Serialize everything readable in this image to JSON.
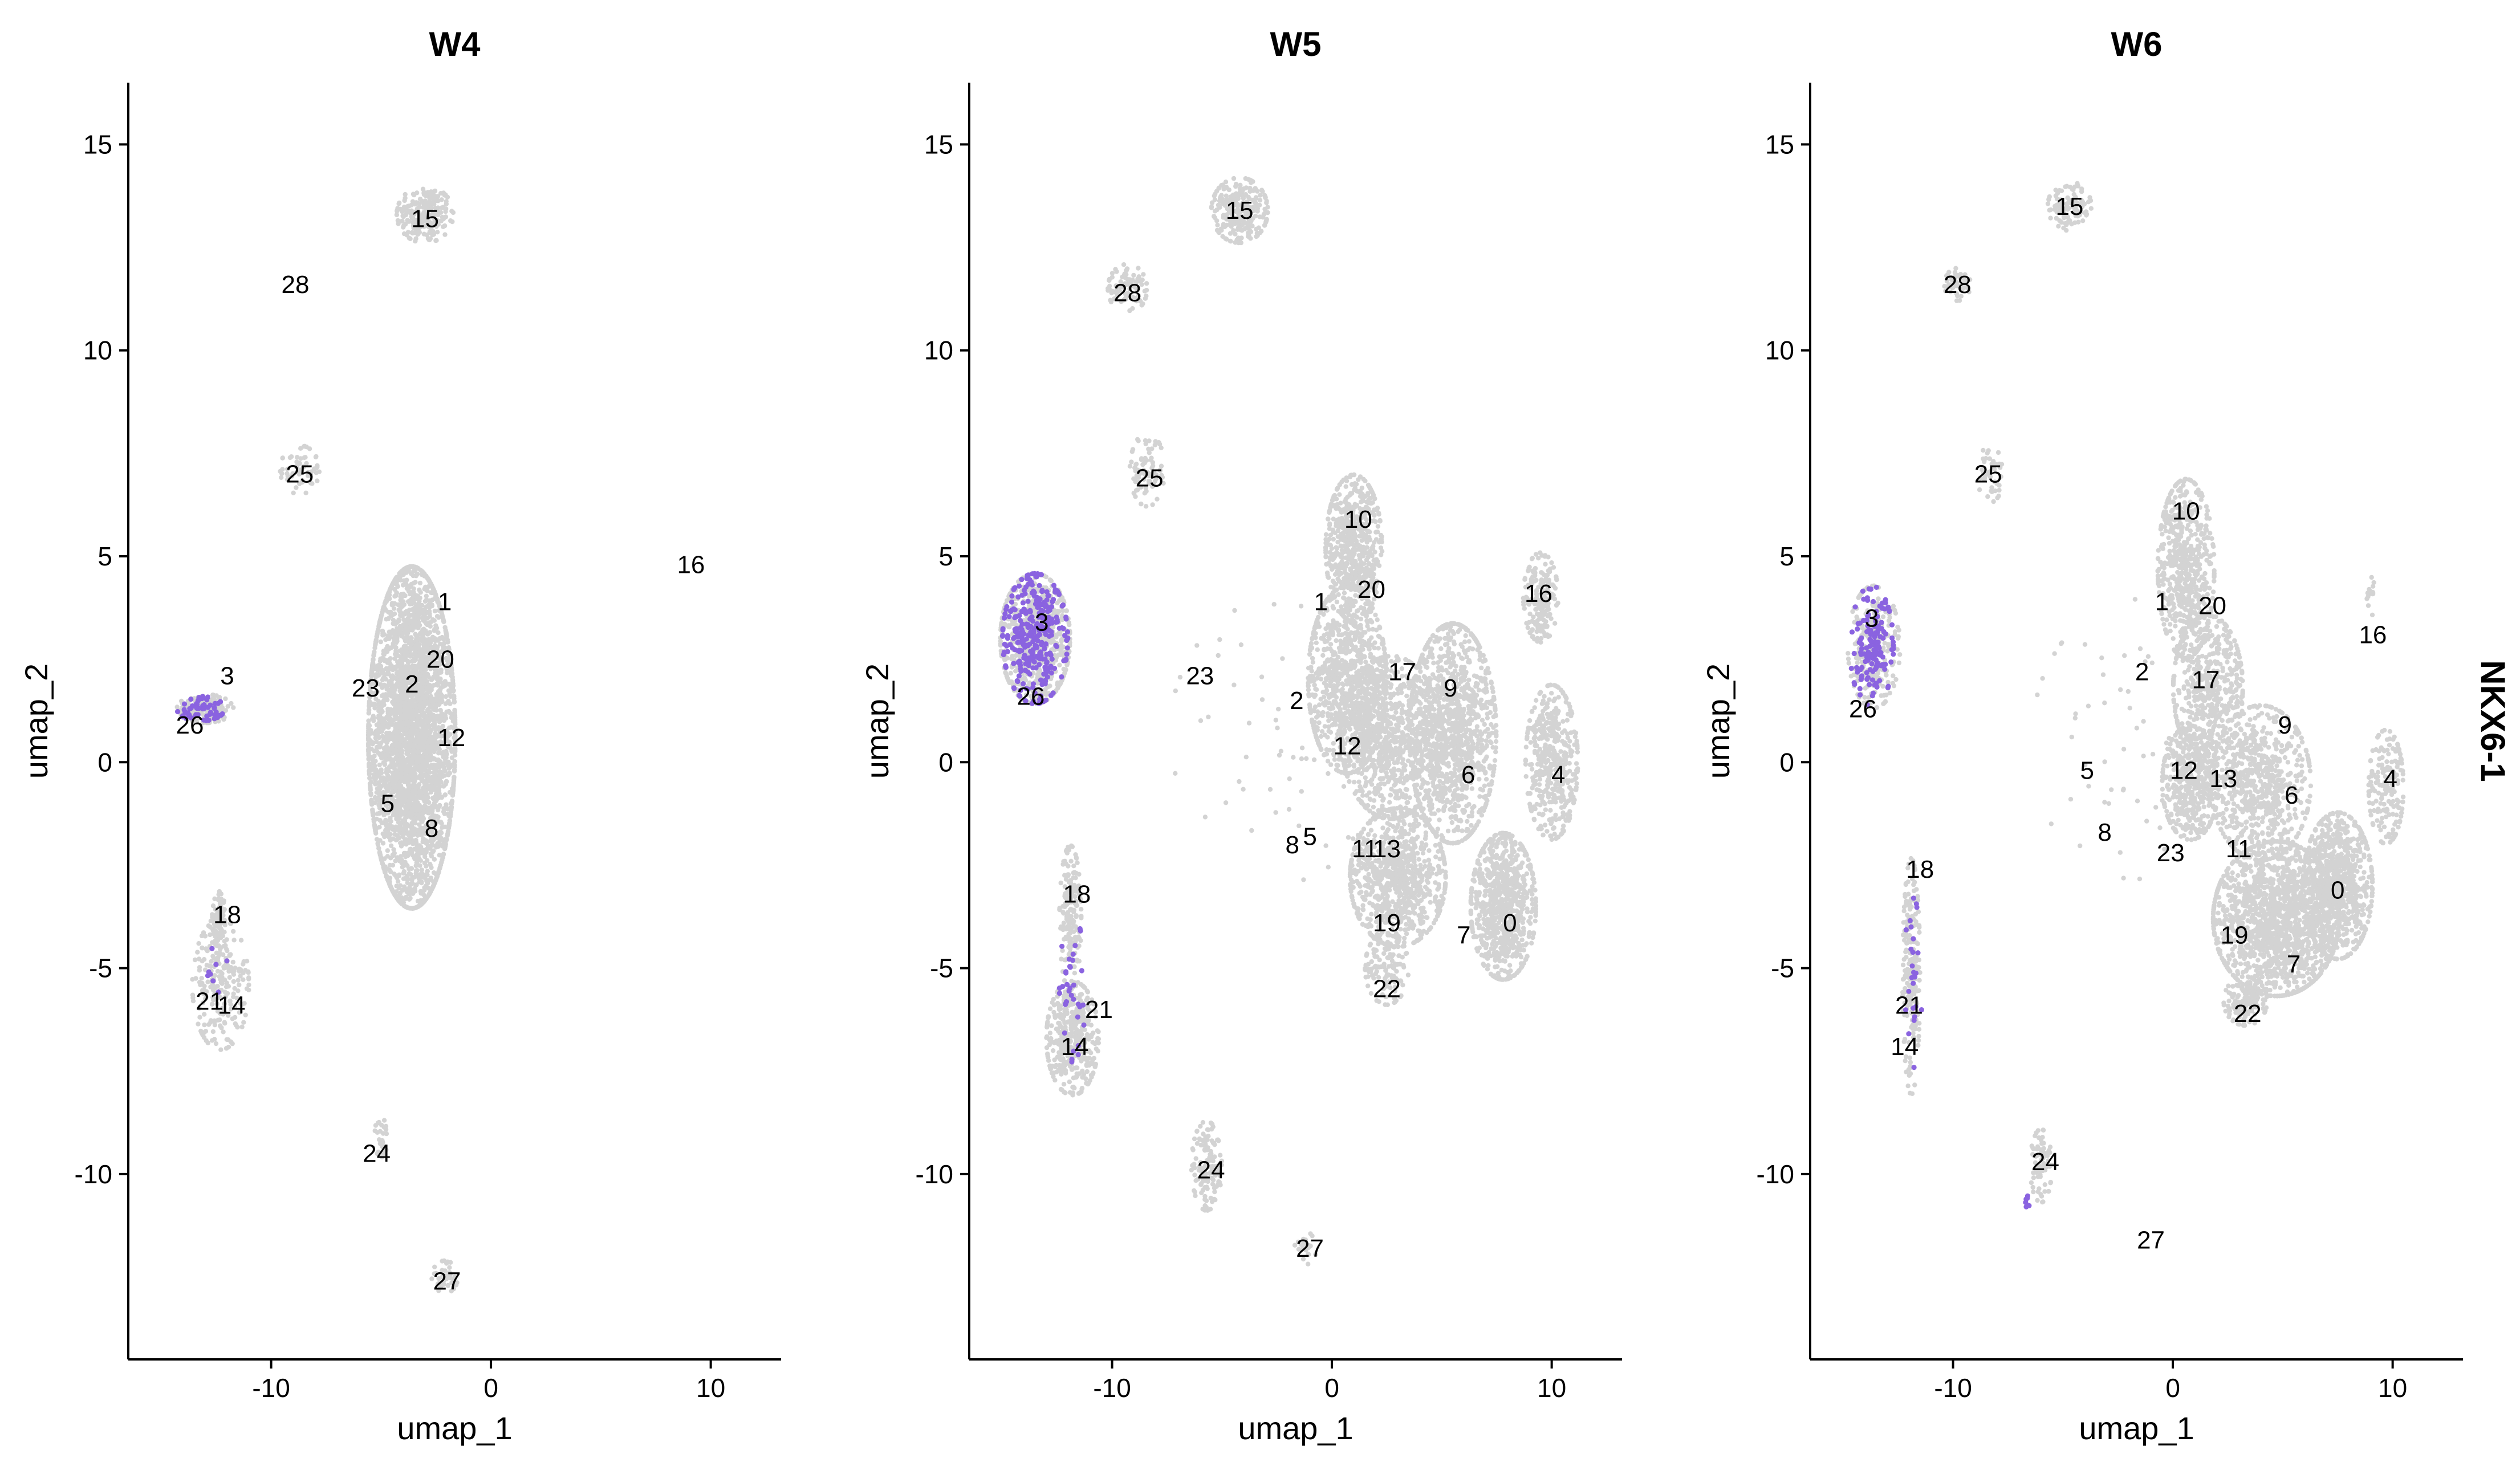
{
  "chart_data": {
    "type": "scatter",
    "feature": "NKX6-1",
    "colors": {
      "background": "#d3d3d3",
      "expression": "#8a63e0"
    },
    "xlabel": "umap_1",
    "ylabel": "umap_2",
    "xlim": [
      -16.5,
      13.2
    ],
    "ylim": [
      -14.5,
      16.5
    ],
    "xticks": [
      {
        "value": -10,
        "label": "-10"
      },
      {
        "value": 0,
        "label": "0"
      },
      {
        "value": 10,
        "label": "10"
      }
    ],
    "yticks": [
      {
        "value": 15,
        "label": "15"
      },
      {
        "value": 10,
        "label": "10"
      },
      {
        "value": 5,
        "label": "5"
      },
      {
        "value": 0,
        "label": "0"
      },
      {
        "value": -5,
        "label": "-5"
      },
      {
        "value": -10,
        "label": "-10"
      }
    ],
    "panels": [
      {
        "title": "W4",
        "clusters": [
          {
            "id": "15",
            "x": -3.0,
            "y": 13.2
          },
          {
            "id": "28",
            "x": -8.9,
            "y": 11.6
          },
          {
            "id": "25",
            "x": -8.7,
            "y": 7.0
          },
          {
            "id": "16",
            "x": 9.1,
            "y": 4.8
          },
          {
            "id": "1",
            "x": -2.1,
            "y": 3.9
          },
          {
            "id": "20",
            "x": -2.3,
            "y": 2.5
          },
          {
            "id": "3",
            "x": -12.0,
            "y": 2.1
          },
          {
            "id": "23",
            "x": -5.7,
            "y": 1.8
          },
          {
            "id": "2",
            "x": -3.6,
            "y": 1.9
          },
          {
            "id": "26",
            "x": -13.7,
            "y": 0.9
          },
          {
            "id": "12",
            "x": -1.8,
            "y": 0.6
          },
          {
            "id": "5",
            "x": -4.7,
            "y": -1.0
          },
          {
            "id": "8",
            "x": -2.7,
            "y": -1.6
          },
          {
            "id": "18",
            "x": -12.0,
            "y": -3.7
          },
          {
            "id": "21",
            "x": -12.8,
            "y": -5.8
          },
          {
            "id": "14",
            "x": -11.8,
            "y": -5.9
          },
          {
            "id": "24",
            "x": -5.2,
            "y": -9.5
          },
          {
            "id": "27",
            "x": -2.0,
            "y": -12.6
          }
        ],
        "islands": [
          {
            "cx": -3.0,
            "cy": 13.3,
            "rx": 1.3,
            "ry": 0.7,
            "n": 220
          },
          {
            "cx": -8.7,
            "cy": 7.1,
            "rx": 0.9,
            "ry": 0.6,
            "n": 60
          },
          {
            "cx": -3.6,
            "cy": 0.6,
            "rx": 2.0,
            "ry": 4.2,
            "n": 3600
          },
          {
            "cx": -12.3,
            "cy": -5.4,
            "rx": 1.3,
            "ry": 1.6,
            "n": 240
          },
          {
            "cx": -12.4,
            "cy": -3.9,
            "rx": 0.35,
            "ry": 0.8,
            "n": 70
          },
          {
            "cx": -5.0,
            "cy": -9.1,
            "rx": 0.3,
            "ry": 0.5,
            "n": 25
          },
          {
            "cx": -2.1,
            "cy": -12.5,
            "rx": 0.6,
            "ry": 0.4,
            "n": 45
          },
          {
            "cx": -13.0,
            "cy": 1.3,
            "rx": 1.3,
            "ry": 0.35,
            "n": 140
          }
        ],
        "expressed": [
          {
            "cx": -13.2,
            "cy": 1.3,
            "rx": 1.1,
            "ry": 0.3,
            "n": 60
          },
          {
            "cx": -12.4,
            "cy": -5.3,
            "rx": 0.6,
            "ry": 0.9,
            "n": 8
          }
        ]
      },
      {
        "title": "W5",
        "clusters": [
          {
            "id": "15",
            "x": -4.2,
            "y": 13.4
          },
          {
            "id": "28",
            "x": -9.3,
            "y": 11.4
          },
          {
            "id": "25",
            "x": -8.3,
            "y": 6.9
          },
          {
            "id": "10",
            "x": 1.2,
            "y": 5.9
          },
          {
            "id": "16",
            "x": 9.4,
            "y": 4.1
          },
          {
            "id": "20",
            "x": 1.8,
            "y": 4.2
          },
          {
            "id": "1",
            "x": -0.5,
            "y": 3.9
          },
          {
            "id": "3",
            "x": -13.2,
            "y": 3.4
          },
          {
            "id": "17",
            "x": 3.2,
            "y": 2.2
          },
          {
            "id": "23",
            "x": -6.0,
            "y": 2.1
          },
          {
            "id": "9",
            "x": 5.4,
            "y": 1.8
          },
          {
            "id": "26",
            "x": -13.7,
            "y": 1.6
          },
          {
            "id": "2",
            "x": -1.6,
            "y": 1.5
          },
          {
            "id": "12",
            "x": 0.7,
            "y": 0.4
          },
          {
            "id": "6",
            "x": 6.2,
            "y": -0.3
          },
          {
            "id": "4",
            "x": 10.3,
            "y": -0.3
          },
          {
            "id": "5",
            "x": -1.0,
            "y": -1.8
          },
          {
            "id": "8",
            "x": -1.8,
            "y": -2.0
          },
          {
            "id": "11",
            "x": 1.5,
            "y": -2.1
          },
          {
            "id": "13",
            "x": 2.5,
            "y": -2.1
          },
          {
            "id": "19",
            "x": 2.5,
            "y": -3.9
          },
          {
            "id": "7",
            "x": 6.0,
            "y": -4.2
          },
          {
            "id": "0",
            "x": 8.1,
            "y": -3.9
          },
          {
            "id": "18",
            "x": -11.6,
            "y": -3.2
          },
          {
            "id": "21",
            "x": -10.6,
            "y": -6.0
          },
          {
            "id": "22",
            "x": 2.5,
            "y": -5.5
          },
          {
            "id": "14",
            "x": -11.7,
            "y": -6.9
          },
          {
            "id": "24",
            "x": -5.5,
            "y": -9.9
          },
          {
            "id": "27",
            "x": -1.0,
            "y": -11.8
          }
        ],
        "islands": [
          {
            "cx": -4.2,
            "cy": 13.4,
            "rx": 1.3,
            "ry": 0.8,
            "n": 260
          },
          {
            "cx": -9.3,
            "cy": 11.5,
            "rx": 0.9,
            "ry": 0.6,
            "n": 90
          },
          {
            "cx": -8.4,
            "cy": 7.1,
            "rx": 0.8,
            "ry": 0.9,
            "n": 90
          },
          {
            "cx": -13.5,
            "cy": 3.0,
            "rx": 1.6,
            "ry": 1.6,
            "n": 700
          },
          {
            "cx": 1.0,
            "cy": 5.2,
            "rx": 1.3,
            "ry": 1.8,
            "n": 600
          },
          {
            "cx": 0.7,
            "cy": 2.0,
            "rx": 1.8,
            "ry": 2.3,
            "n": 900
          },
          {
            "cx": 2.7,
            "cy": 0.6,
            "rx": 2.3,
            "ry": 2.0,
            "n": 900
          },
          {
            "cx": 5.5,
            "cy": 0.7,
            "rx": 2.0,
            "ry": 2.7,
            "n": 1200
          },
          {
            "cx": 3.0,
            "cy": -2.8,
            "rx": 2.2,
            "ry": 1.7,
            "n": 900
          },
          {
            "cx": 7.8,
            "cy": -3.5,
            "rx": 1.5,
            "ry": 1.8,
            "n": 800
          },
          {
            "cx": 10.0,
            "cy": 0.0,
            "rx": 1.2,
            "ry": 1.9,
            "n": 450
          },
          {
            "cx": 9.5,
            "cy": 4.0,
            "rx": 0.8,
            "ry": 1.1,
            "n": 180
          },
          {
            "cx": 2.5,
            "cy": -5.0,
            "rx": 1.0,
            "ry": 0.9,
            "n": 120
          },
          {
            "cx": -11.8,
            "cy": -6.7,
            "rx": 1.2,
            "ry": 1.4,
            "n": 420
          },
          {
            "cx": -11.9,
            "cy": -3.8,
            "rx": 0.5,
            "ry": 1.8,
            "n": 180
          },
          {
            "cx": -5.7,
            "cy": -9.8,
            "rx": 0.7,
            "ry": 1.1,
            "n": 140
          },
          {
            "cx": -1.2,
            "cy": -11.8,
            "rx": 0.5,
            "ry": 0.4,
            "n": 30
          },
          {
            "cx": -2.5,
            "cy": 0.5,
            "rx": 5.0,
            "ry": 3.5,
            "n": 60
          }
        ],
        "expressed": [
          {
            "cx": -13.5,
            "cy": 3.0,
            "rx": 1.5,
            "ry": 1.6,
            "n": 320
          },
          {
            "cx": -11.8,
            "cy": -5.5,
            "rx": 0.6,
            "ry": 1.8,
            "n": 35
          }
        ]
      },
      {
        "title": "W6",
        "clusters": [
          {
            "id": "15",
            "x": -4.7,
            "y": 13.5
          },
          {
            "id": "28",
            "x": -9.8,
            "y": 11.6
          },
          {
            "id": "25",
            "x": -8.4,
            "y": 7.0
          },
          {
            "id": "10",
            "x": 0.6,
            "y": 6.1
          },
          {
            "id": "1",
            "x": -0.5,
            "y": 3.9
          },
          {
            "id": "20",
            "x": 1.8,
            "y": 3.8
          },
          {
            "id": "3",
            "x": -13.7,
            "y": 3.5
          },
          {
            "id": "16",
            "x": 9.1,
            "y": 3.1
          },
          {
            "id": "2",
            "x": -1.4,
            "y": 2.2
          },
          {
            "id": "17",
            "x": 1.5,
            "y": 2.0
          },
          {
            "id": "26",
            "x": -14.1,
            "y": 1.3
          },
          {
            "id": "9",
            "x": 5.1,
            "y": 0.9
          },
          {
            "id": "5",
            "x": -3.9,
            "y": -0.2
          },
          {
            "id": "12",
            "x": 0.5,
            "y": -0.2
          },
          {
            "id": "13",
            "x": 2.3,
            "y": -0.4
          },
          {
            "id": "4",
            "x": 9.9,
            "y": -0.4
          },
          {
            "id": "6",
            "x": 5.4,
            "y": -0.8
          },
          {
            "id": "8",
            "x": -3.1,
            "y": -1.7
          },
          {
            "id": "23",
            "x": -0.1,
            "y": -2.2
          },
          {
            "id": "11",
            "x": 3.0,
            "y": -2.1
          },
          {
            "id": "18",
            "x": -11.5,
            "y": -2.6
          },
          {
            "id": "0",
            "x": 7.5,
            "y": -3.1
          },
          {
            "id": "19",
            "x": 2.8,
            "y": -4.2
          },
          {
            "id": "7",
            "x": 5.5,
            "y": -4.9
          },
          {
            "id": "21",
            "x": -12.0,
            "y": -5.9
          },
          {
            "id": "22",
            "x": 3.4,
            "y": -6.1
          },
          {
            "id": "14",
            "x": -12.2,
            "y": -6.9
          },
          {
            "id": "24",
            "x": -5.8,
            "y": -9.7
          },
          {
            "id": "27",
            "x": -1.0,
            "y": -11.6
          }
        ],
        "islands": [
          {
            "cx": -4.7,
            "cy": 13.5,
            "rx": 1.0,
            "ry": 0.6,
            "n": 110
          },
          {
            "cx": -9.8,
            "cy": 11.6,
            "rx": 0.6,
            "ry": 0.4,
            "n": 50
          },
          {
            "cx": -8.3,
            "cy": 7.0,
            "rx": 0.6,
            "ry": 0.7,
            "n": 40
          },
          {
            "cx": -13.6,
            "cy": 2.8,
            "rx": 1.2,
            "ry": 1.5,
            "n": 260
          },
          {
            "cx": 0.6,
            "cy": 4.7,
            "rx": 1.3,
            "ry": 2.2,
            "n": 600
          },
          {
            "cx": 1.6,
            "cy": 1.8,
            "rx": 1.6,
            "ry": 1.8,
            "n": 500
          },
          {
            "cx": 0.8,
            "cy": -0.5,
            "rx": 1.3,
            "ry": 1.4,
            "n": 450
          },
          {
            "cx": 4.0,
            "cy": -0.5,
            "rx": 2.3,
            "ry": 1.9,
            "n": 700
          },
          {
            "cx": 4.7,
            "cy": -3.8,
            "rx": 2.9,
            "ry": 1.9,
            "n": 1600
          },
          {
            "cx": 7.5,
            "cy": -3.0,
            "rx": 1.6,
            "ry": 1.8,
            "n": 800
          },
          {
            "cx": 9.7,
            "cy": -0.6,
            "rx": 0.8,
            "ry": 1.4,
            "n": 180
          },
          {
            "cx": 9.0,
            "cy": 4.0,
            "rx": 0.3,
            "ry": 0.5,
            "n": 15
          },
          {
            "cx": 3.3,
            "cy": -5.8,
            "rx": 1.0,
            "ry": 0.6,
            "n": 150
          },
          {
            "cx": -11.9,
            "cy": -5.2,
            "rx": 0.4,
            "ry": 2.9,
            "n": 200
          },
          {
            "cx": -6.0,
            "cy": -9.8,
            "rx": 0.5,
            "ry": 0.9,
            "n": 80
          },
          {
            "cx": -1.5,
            "cy": 0.5,
            "rx": 5.0,
            "ry": 3.5,
            "n": 70
          }
        ],
        "expressed": [
          {
            "cx": -13.7,
            "cy": 2.8,
            "rx": 1.0,
            "ry": 1.5,
            "n": 140
          },
          {
            "cx": -11.8,
            "cy": -5.2,
            "rx": 0.4,
            "ry": 2.3,
            "n": 25
          },
          {
            "cx": -6.5,
            "cy": -10.7,
            "rx": 0.2,
            "ry": 0.2,
            "n": 6
          }
        ]
      }
    ]
  }
}
